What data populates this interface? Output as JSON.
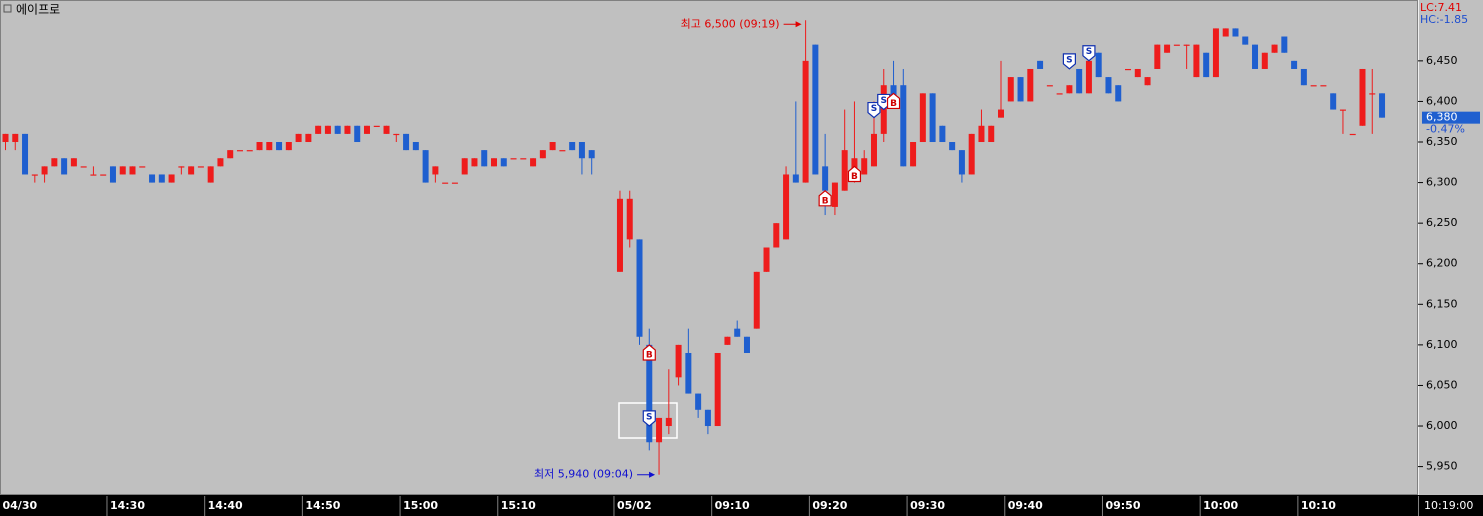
{
  "chart_data": {
    "type": "candlestick",
    "title": "에이프로",
    "lc": "LC:7.41",
    "hc": "HC:-1.85",
    "current_time": "10:19:00",
    "current_price": {
      "value": 6380,
      "label": "6,380"
    },
    "current_change": "-0.47%",
    "up_color": "#ee1c1c",
    "down_color": "#1f5fcf",
    "ylim": [
      5915,
      6525
    ],
    "yticks": [
      {
        "value": 5950,
        "label": "5,950"
      },
      {
        "value": 6000,
        "label": "6,000"
      },
      {
        "value": 6050,
        "label": "6,050"
      },
      {
        "value": 6100,
        "label": "6,100"
      },
      {
        "value": 6150,
        "label": "6,150"
      },
      {
        "value": 6200,
        "label": "6,200"
      },
      {
        "value": 6250,
        "label": "6,250"
      },
      {
        "value": 6300,
        "label": "6,300"
      },
      {
        "value": 6350,
        "label": "6,350"
      },
      {
        "value": 6400,
        "label": "6,400"
      },
      {
        "value": 6450,
        "label": "6,450"
      }
    ],
    "categories": [
      "04/30",
      null,
      null,
      null,
      null,
      null,
      null,
      null,
      null,
      null,
      null,
      "14:30",
      null,
      null,
      null,
      null,
      null,
      null,
      null,
      null,
      null,
      "14:40",
      null,
      null,
      null,
      null,
      null,
      null,
      null,
      null,
      null,
      "14:50",
      null,
      null,
      null,
      null,
      null,
      null,
      null,
      null,
      null,
      "15:00",
      null,
      null,
      null,
      null,
      null,
      null,
      null,
      null,
      null,
      "15:10",
      null,
      null,
      null,
      null,
      null,
      null,
      null,
      null,
      null,
      "05/02",
      null,
      null,
      null,
      null,
      null,
      null,
      null,
      null,
      null,
      "09:10",
      null,
      null,
      null,
      null,
      null,
      null,
      null,
      null,
      null,
      "09:20",
      null,
      null,
      null,
      null,
      null,
      null,
      null,
      null,
      null,
      "09:30",
      null,
      null,
      null,
      null,
      null,
      null,
      null,
      null,
      null,
      "09:40",
      null,
      null,
      null,
      null,
      null,
      null,
      null,
      null,
      null,
      "09:50",
      null,
      null,
      null,
      null,
      null,
      null,
      null,
      null,
      null,
      "10:00",
      null,
      null,
      null,
      null,
      null,
      null,
      null,
      null,
      null,
      "10:10",
      null,
      null,
      null,
      null,
      null,
      null,
      null,
      null
    ],
    "open": [
      6350,
      6350,
      6360,
      6310,
      6310,
      6320,
      6330,
      6320,
      6320,
      6310,
      6310,
      6320,
      6310,
      6310,
      6320,
      6310,
      6310,
      6300,
      6320,
      6310,
      6320,
      6300,
      6320,
      6330,
      6340,
      6340,
      6340,
      6340,
      6350,
      6340,
      6350,
      6350,
      6360,
      6360,
      6370,
      6360,
      6370,
      6360,
      6370,
      6360,
      6360,
      6360,
      6350,
      6340,
      6310,
      6300,
      6300,
      6310,
      6320,
      6340,
      6320,
      6330,
      6330,
      6330,
      6320,
      6330,
      6340,
      6340,
      6350,
      6350,
      6340,
      6190,
      6230,
      6230,
      6100,
      5980,
      6000,
      6060,
      6090,
      6040,
      6020,
      6000,
      6100,
      6120,
      6110,
      6120,
      6190,
      6220,
      6230,
      6310,
      6300,
      6470,
      6320,
      6270,
      6290,
      6310,
      6310,
      6320,
      6360,
      6420,
      6420,
      6320,
      6350,
      6410,
      6370,
      6350,
      6340,
      6310,
      6350,
      6350,
      6380,
      6400,
      6430,
      6400,
      6450,
      6420,
      6410,
      6410,
      6440,
      6410,
      6460,
      6430,
      6420,
      6440,
      6430,
      6420,
      6440,
      6460,
      6470,
      6470,
      6430,
      6460,
      6430,
      6480,
      6490,
      6480,
      6470,
      6440,
      6460,
      6480,
      6450,
      6440,
      6420,
      6420,
      6410,
      6390,
      6360,
      6370,
      6410,
      6410
    ],
    "high": [
      6360,
      6360,
      6360,
      6310,
      6320,
      6330,
      6330,
      6330,
      6320,
      6320,
      6310,
      6320,
      6320,
      6320,
      6320,
      6310,
      6310,
      6310,
      6320,
      6320,
      6320,
      6320,
      6330,
      6340,
      6340,
      6340,
      6350,
      6350,
      6350,
      6350,
      6360,
      6360,
      6370,
      6370,
      6370,
      6370,
      6370,
      6370,
      6370,
      6370,
      6360,
      6360,
      6350,
      6340,
      6320,
      6300,
      6300,
      6330,
      6330,
      6340,
      6330,
      6330,
      6330,
      6330,
      6330,
      6340,
      6350,
      6340,
      6350,
      6350,
      6340,
      6290,
      6290,
      6230,
      6120,
      6010,
      6070,
      6100,
      6120,
      6040,
      6020,
      6090,
      6110,
      6130,
      6110,
      6190,
      6220,
      6250,
      6320,
      6400,
      6500,
      6470,
      6360,
      6300,
      6390,
      6400,
      6340,
      6400,
      6440,
      6450,
      6440,
      6350,
      6410,
      6410,
      6370,
      6350,
      6340,
      6360,
      6390,
      6370,
      6450,
      6430,
      6430,
      6440,
      6450,
      6420,
      6410,
      6420,
      6440,
      6450,
      6460,
      6430,
      6420,
      6440,
      6440,
      6430,
      6470,
      6470,
      6470,
      6470,
      6470,
      6460,
      6490,
      6490,
      6490,
      6480,
      6470,
      6460,
      6470,
      6480,
      6450,
      6440,
      6420,
      6420,
      6410,
      6390,
      6360,
      6440,
      6440,
      6410
    ],
    "low": [
      6340,
      6340,
      6310,
      6300,
      6300,
      6320,
      6310,
      6320,
      6320,
      6310,
      6310,
      6300,
      6310,
      6310,
      6320,
      6300,
      6300,
      6300,
      6310,
      6310,
      6320,
      6300,
      6320,
      6330,
      6340,
      6340,
      6340,
      6340,
      6340,
      6340,
      6350,
      6350,
      6360,
      6360,
      6360,
      6360,
      6350,
      6360,
      6370,
      6360,
      6350,
      6340,
      6340,
      6300,
      6300,
      6300,
      6300,
      6310,
      6320,
      6320,
      6320,
      6320,
      6330,
      6330,
      6320,
      6330,
      6340,
      6340,
      6340,
      6310,
      6310,
      6190,
      6220,
      6100,
      5970,
      5940,
      5990,
      6050,
      6040,
      6010,
      5990,
      6000,
      6100,
      6110,
      6090,
      6120,
      6190,
      6220,
      6230,
      6300,
      6300,
      6310,
      6260,
      6260,
      6290,
      6300,
      6310,
      6320,
      6350,
      6400,
      6320,
      6320,
      6350,
      6350,
      6350,
      6340,
      6300,
      6310,
      6350,
      6350,
      6380,
      6400,
      6400,
      6400,
      6440,
      6420,
      6410,
      6410,
      6410,
      6410,
      6430,
      6410,
      6400,
      6440,
      6430,
      6420,
      6440,
      6460,
      6470,
      6440,
      6430,
      6430,
      6430,
      6480,
      6480,
      6470,
      6440,
      6440,
      6460,
      6460,
      6440,
      6420,
      6420,
      6420,
      6390,
      6360,
      6360,
      6370,
      6360,
      6380
    ],
    "close": [
      6360,
      6360,
      6310,
      6310,
      6320,
      6330,
      6310,
      6330,
      6320,
      6310,
      6310,
      6300,
      6320,
      6320,
      6320,
      6300,
      6300,
      6310,
      6320,
      6320,
      6320,
      6320,
      6330,
      6340,
      6340,
      6340,
      6350,
      6350,
      6340,
      6350,
      6360,
      6360,
      6370,
      6370,
      6360,
      6370,
      6350,
      6370,
      6370,
      6370,
      6360,
      6340,
      6340,
      6300,
      6320,
      6300,
      6300,
      6330,
      6330,
      6320,
      6330,
      6320,
      6330,
      6330,
      6330,
      6340,
      6350,
      6340,
      6340,
      6330,
      6330,
      6280,
      6280,
      6110,
      5980,
      6010,
      6010,
      6100,
      6040,
      6020,
      6000,
      6090,
      6110,
      6110,
      6090,
      6190,
      6220,
      6250,
      6310,
      6300,
      6450,
      6310,
      6290,
      6300,
      6340,
      6330,
      6330,
      6360,
      6420,
      6400,
      6320,
      6350,
      6410,
      6350,
      6350,
      6340,
      6310,
      6360,
      6370,
      6370,
      6390,
      6430,
      6400,
      6440,
      6440,
      6420,
      6410,
      6420,
      6410,
      6450,
      6430,
      6410,
      6400,
      6440,
      6440,
      6430,
      6470,
      6470,
      6470,
      6470,
      6470,
      6430,
      6490,
      6490,
      6480,
      6470,
      6440,
      6460,
      6470,
      6460,
      6440,
      6420,
      6420,
      6420,
      6390,
      6390,
      6360,
      6440,
      6410,
      6380
    ],
    "signals": [
      {
        "label": "B",
        "at": 64,
        "price": 6090
      },
      {
        "label": "S",
        "at": 64,
        "price": 6010
      },
      {
        "label": "B",
        "at": 82,
        "price": 6280
      },
      {
        "label": "B",
        "at": 85,
        "price": 6310
      },
      {
        "label": "S",
        "at": 87,
        "price": 6390
      },
      {
        "label": "S",
        "at": 88,
        "price": 6400
      },
      {
        "label": "B",
        "at": 89,
        "price": 6400
      },
      {
        "label": "S",
        "at": 107,
        "price": 6450
      },
      {
        "label": "S",
        "at": 109,
        "price": 6460
      }
    ],
    "high_note": {
      "text": "최고 6,500 (09:19)",
      "at": 80,
      "price": 6500
    },
    "low_note": {
      "text": "최저 5,940 (09:04)",
      "at": 65,
      "price": 5940
    }
  }
}
